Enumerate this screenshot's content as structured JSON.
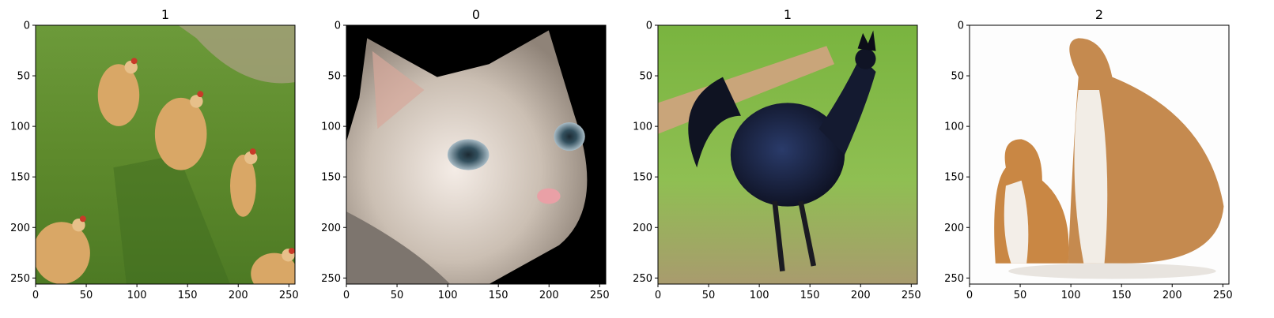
{
  "chart_data": [
    {
      "type": "image",
      "title": "1",
      "subject": "chickens on grass",
      "xlim": [
        0,
        256
      ],
      "ylim": [
        256,
        0
      ],
      "xticks": [
        0,
        50,
        100,
        150,
        200,
        250
      ],
      "yticks": [
        0,
        50,
        100,
        150,
        200,
        250
      ],
      "xlabel": "",
      "ylabel": ""
    },
    {
      "type": "image",
      "title": "0",
      "subject": "cat face",
      "xlim": [
        0,
        256
      ],
      "ylim": [
        256,
        0
      ],
      "xticks": [
        0,
        50,
        100,
        150,
        200,
        250
      ],
      "yticks": [
        0,
        50,
        100,
        150,
        200,
        250
      ],
      "xlabel": "",
      "ylabel": ""
    },
    {
      "type": "image",
      "title": "1",
      "subject": "black rooster",
      "xlim": [
        0,
        256
      ],
      "ylim": [
        256,
        0
      ],
      "xticks": [
        0,
        50,
        100,
        150,
        200,
        250
      ],
      "yticks": [
        0,
        50,
        100,
        150,
        200,
        250
      ],
      "xlabel": "",
      "ylabel": ""
    },
    {
      "type": "image",
      "title": "2",
      "subject": "two bulldogs",
      "xlim": [
        0,
        256
      ],
      "ylim": [
        256,
        0
      ],
      "xticks": [
        0,
        50,
        100,
        150,
        200,
        250
      ],
      "yticks": [
        0,
        50,
        100,
        150,
        200,
        250
      ],
      "xlabel": "",
      "ylabel": ""
    }
  ]
}
